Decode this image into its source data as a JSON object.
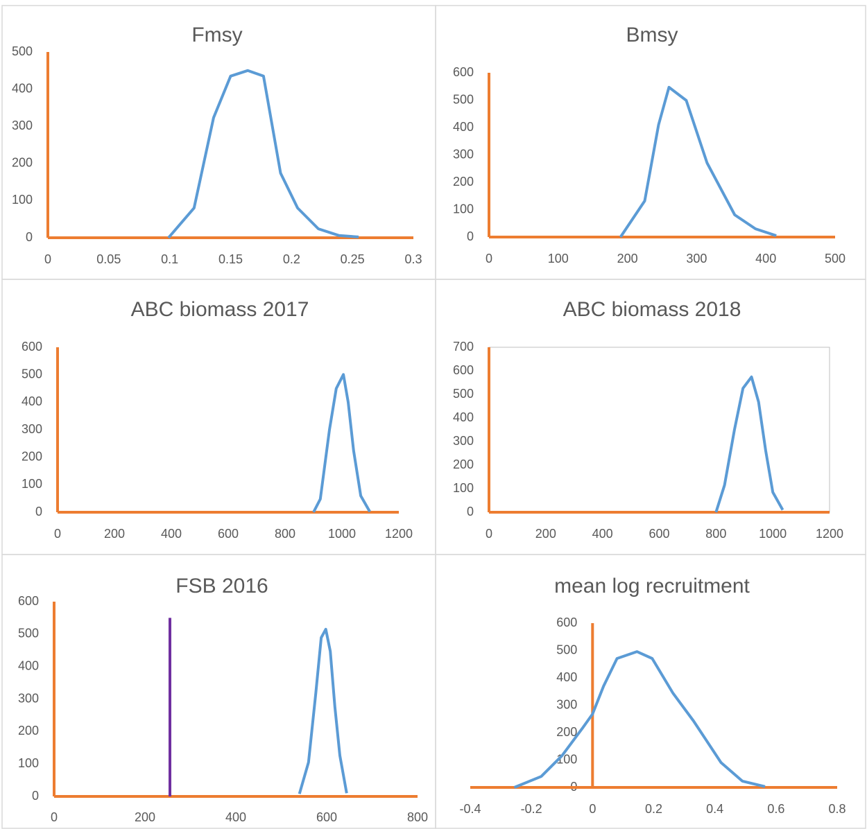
{
  "chart_data": [
    {
      "type": "line",
      "title": "Fmsy",
      "xlim": [
        0,
        0.3
      ],
      "ylim": [
        0,
        500
      ],
      "xticks": [
        0,
        0.05,
        0.1,
        0.15,
        0.2,
        0.25,
        0.3
      ],
      "yticks": [
        0,
        100,
        200,
        300,
        400,
        500
      ],
      "plot_border": false,
      "series": [
        {
          "color": "#ed7d31",
          "x": [
            0,
            0
          ],
          "values": [
            0,
            500
          ]
        },
        {
          "color": "#ed7d31",
          "x": [
            0,
            0.3
          ],
          "values": [
            0,
            0
          ]
        },
        {
          "color": "#5b9bd5",
          "x": [
            0.099,
            0.12,
            0.136,
            0.15,
            0.164,
            0.177,
            0.191,
            0.205,
            0.222,
            0.239,
            0.255
          ],
          "values": [
            0,
            80,
            323,
            435,
            450,
            435,
            174,
            80,
            24,
            6,
            2
          ]
        }
      ]
    },
    {
      "type": "line",
      "title": "Bmsy",
      "xlim": [
        0,
        500
      ],
      "ylim": [
        0,
        600
      ],
      "xticks": [
        0,
        100,
        200,
        300,
        400,
        500
      ],
      "yticks": [
        0,
        100,
        200,
        300,
        400,
        500,
        600
      ],
      "plot_border": false,
      "series": [
        {
          "color": "#ed7d31",
          "x": [
            0,
            0
          ],
          "values": [
            0,
            600
          ]
        },
        {
          "color": "#ed7d31",
          "x": [
            0,
            500
          ],
          "values": [
            0,
            0
          ]
        },
        {
          "color": "#5b9bd5",
          "x": [
            190,
            225,
            245,
            260,
            285,
            315,
            355,
            385,
            415
          ],
          "values": [
            0,
            132,
            410,
            547,
            499,
            271,
            81,
            30,
            5
          ]
        }
      ]
    },
    {
      "type": "line",
      "title": "ABC biomass 2017",
      "xlim": [
        0,
        1200
      ],
      "ylim": [
        0,
        600
      ],
      "xticks": [
        0,
        200,
        400,
        600,
        800,
        1000,
        1200
      ],
      "yticks": [
        0,
        100,
        200,
        300,
        400,
        500,
        600
      ],
      "plot_border": false,
      "series": [
        {
          "color": "#ed7d31",
          "x": [
            0,
            0
          ],
          "values": [
            0,
            600
          ]
        },
        {
          "color": "#ed7d31",
          "x": [
            0,
            1200
          ],
          "values": [
            0,
            0
          ]
        },
        {
          "color": "#5b9bd5",
          "x": [
            900,
            924,
            956,
            980,
            1005,
            1022,
            1041,
            1066,
            1098
          ],
          "values": [
            0,
            48,
            300,
            450,
            501,
            400,
            224,
            60,
            2
          ]
        }
      ]
    },
    {
      "type": "line",
      "title": "ABC biomass 2018",
      "xlim": [
        0,
        1200
      ],
      "ylim": [
        0,
        700
      ],
      "xticks": [
        0,
        200,
        400,
        600,
        800,
        1000,
        1200
      ],
      "yticks": [
        0,
        100,
        200,
        300,
        400,
        500,
        600,
        700
      ],
      "plot_border": true,
      "series": [
        {
          "color": "#ed7d31",
          "x": [
            0,
            0
          ],
          "values": [
            0,
            700
          ]
        },
        {
          "color": "#ed7d31",
          "x": [
            0,
            1200
          ],
          "values": [
            0,
            0
          ]
        },
        {
          "color": "#5b9bd5",
          "x": [
            800,
            830,
            865,
            895,
            925,
            950,
            975,
            1000,
            1035
          ],
          "values": [
            0,
            115,
            350,
            526,
            574,
            468,
            262,
            85,
            10
          ]
        }
      ]
    },
    {
      "type": "line",
      "title": "FSB 2016",
      "xlim": [
        0,
        800
      ],
      "ylim": [
        0,
        600
      ],
      "xticks": [
        0,
        200,
        400,
        600,
        800
      ],
      "yticks": [
        0,
        100,
        200,
        300,
        400,
        500,
        600
      ],
      "plot_border": false,
      "series": [
        {
          "color": "#ed7d31",
          "x": [
            0,
            0
          ],
          "values": [
            0,
            600
          ]
        },
        {
          "color": "#ed7d31",
          "x": [
            0,
            800
          ],
          "values": [
            0,
            0
          ]
        },
        {
          "color": "#7030a0",
          "x": [
            255,
            255
          ],
          "values": [
            0,
            550
          ]
        },
        {
          "color": "#5b9bd5",
          "x": [
            540,
            560,
            576,
            588,
            598,
            608,
            618,
            629,
            644
          ],
          "values": [
            8,
            105,
            318,
            489,
            515,
            447,
            276,
            126,
            10
          ]
        }
      ]
    },
    {
      "type": "line",
      "title": "mean log recruitment",
      "xlim": [
        -0.4,
        0.8
      ],
      "ylim": [
        0,
        600
      ],
      "y_axis_crosses": 0,
      "xticks": [
        -0.4,
        -0.2,
        0,
        0.2,
        0.4,
        0.6,
        0.8
      ],
      "yticks": [
        0,
        100,
        200,
        300,
        400,
        500,
        600
      ],
      "plot_border": false,
      "series": [
        {
          "color": "#ed7d31",
          "x": [
            0,
            0
          ],
          "values": [
            0,
            600
          ]
        },
        {
          "color": "#ed7d31",
          "x": [
            -0.4,
            0.8
          ],
          "values": [
            0,
            0
          ]
        },
        {
          "color": "#5b9bd5",
          "x": [
            -0.256,
            -0.168,
            -0.1,
            -0.032,
            0,
            0.036,
            0.08,
            0.145,
            0.195,
            0.263,
            0.33,
            0.42,
            0.49,
            0.564
          ],
          "values": [
            0,
            40,
            116,
            218,
            268,
            370,
            471,
            496,
            471,
            344,
            243,
            91,
            23,
            3
          ]
        }
      ]
    }
  ]
}
